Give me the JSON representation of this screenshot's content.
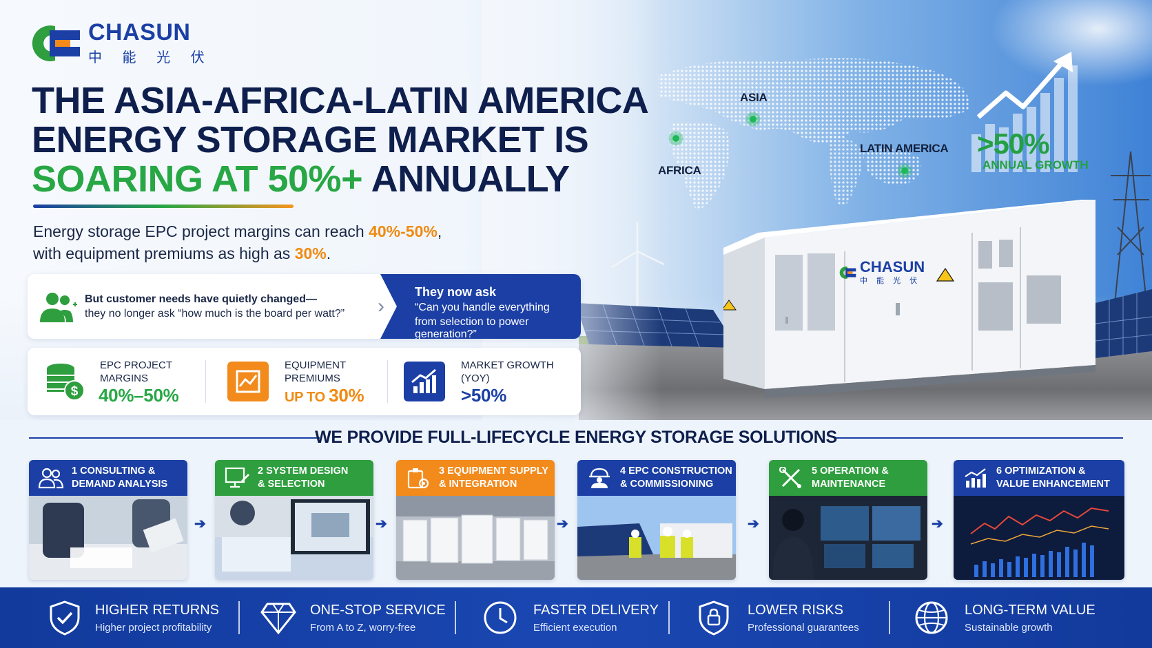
{
  "brand": {
    "name": "CHASUN",
    "chinese_name": "中 能 光 伏",
    "colors": {
      "primary": "#1b3fa5",
      "green": "#28a745",
      "orange": "#f08a12"
    }
  },
  "headline": {
    "line1": "THE ASIA-AFRICA-LATIN AMERICA",
    "line2": "ENERGY STORAGE MARKET IS",
    "line3_green": "SOARING AT 50%+",
    "line3_rest": " ANNUALLY"
  },
  "subtitle": {
    "part1": "Energy storage EPC project margins can reach ",
    "highlight1": "40%-50%",
    "part2": ",",
    "part3": "with equipment premiums as high as ",
    "highlight2": "30%",
    "part4": "."
  },
  "map": {
    "regions": [
      "ASIA",
      "AFRICA",
      "LATIN AMERICA"
    ]
  },
  "growth_badge": {
    "value": ">50%",
    "label": "ANNUAL GROWTH"
  },
  "container_logo": {
    "name": "CHASUN",
    "chinese_name": "中 能 光 伏"
  },
  "ask_panel": {
    "old_line1": "But customer needs have quietly changed—",
    "old_line2": "they no longer ask “how much is the board per watt?”",
    "new_line1": "They now ask",
    "new_line2": "“Can you handle everything",
    "new_line3": "from selection to power generation?”",
    "icon": "people-icon"
  },
  "stats": [
    {
      "label1": "EPC PROJECT",
      "label2": "MARGINS",
      "value": "40%–50%",
      "color": "#28a745",
      "icon": "coins-dollar-icon"
    },
    {
      "label1": "EQUIPMENT",
      "label2": "PREMIUMS",
      "value_prefix": "UP TO ",
      "value": "30%",
      "color": "#f08a12",
      "icon": "premium-chart-icon"
    },
    {
      "label1": "MARKET GROWTH",
      "label2": "(YOY)",
      "value": ">50%",
      "color": "#1b3fa5",
      "icon": "growth-chart-icon"
    }
  ],
  "solutions": {
    "title": "WE PROVIDE FULL-LIFECYCLE ENERGY STORAGE SOLUTIONS",
    "steps": [
      {
        "line1": "1 CONSULTING &",
        "line2": "DEMAND ANALYSIS",
        "color": "#1b3fa5",
        "icon": "consulting-people-icon"
      },
      {
        "line1": "2 SYSTEM DESIGN",
        "line2": "& SELECTION",
        "color": "#2e9e3e",
        "icon": "design-monitor-icon"
      },
      {
        "line1": "3 EQUIPMENT SUPPLY",
        "line2": "& INTEGRATION",
        "color": "#f28a1c",
        "icon": "equipment-gear-icon"
      },
      {
        "line1": "4 EPC CONSTRUCTION",
        "line2": "& COMMISSIONING",
        "color": "#1b3fa5",
        "icon": "engineer-helmet-icon"
      },
      {
        "line1": "5 OPERATION &",
        "line2": "MAINTENANCE",
        "color": "#2e9e3e",
        "icon": "tools-wrench-icon"
      },
      {
        "line1": "6 OPTIMIZATION &",
        "line2": "VALUE ENHANCEMENT",
        "color": "#1b3fa5",
        "icon": "chart-trend-icon"
      }
    ]
  },
  "benefits": [
    {
      "title": "HIGHER RETURNS",
      "sub": "Higher project profitability",
      "icon": "shield-check-icon"
    },
    {
      "title": "ONE-STOP SERVICE",
      "sub": "From A to Z, worry-free",
      "icon": "diamond-icon"
    },
    {
      "title": "FASTER DELIVERY",
      "sub": "Efficient execution",
      "icon": "clock-icon"
    },
    {
      "title": "LOWER RISKS",
      "sub": "Professional guarantees",
      "icon": "shield-lock-icon"
    },
    {
      "title": "LONG-TERM VALUE",
      "sub": "Sustainable growth",
      "icon": "globe-icon"
    }
  ]
}
